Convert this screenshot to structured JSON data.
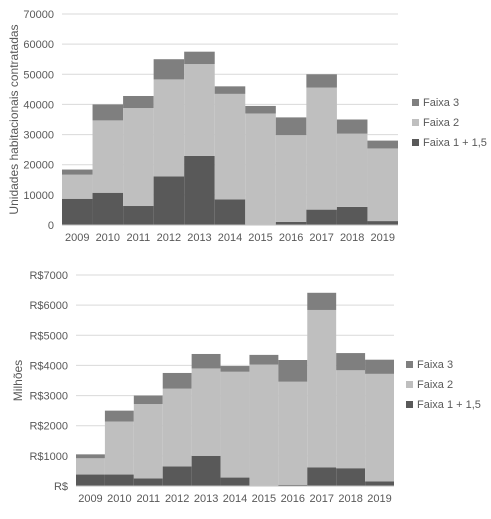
{
  "chart_data": [
    {
      "type": "bar",
      "stacked": true,
      "categories": [
        "2009",
        "2010",
        "2011",
        "2012",
        "2013",
        "2014",
        "2015",
        "2016",
        "2017",
        "2018",
        "2019"
      ],
      "series": [
        {
          "name": "Faixa 1 + 1,5",
          "color": "#595959",
          "values": [
            8700,
            10700,
            6300,
            16100,
            22900,
            8500,
            200,
            1000,
            5100,
            6000,
            1300
          ]
        },
        {
          "name": "Faixa 2",
          "color": "#bfbfbf",
          "values": [
            8000,
            24000,
            32500,
            32200,
            30500,
            35000,
            36800,
            28800,
            40500,
            24300,
            24100
          ]
        },
        {
          "name": "Faixa 3",
          "color": "#7f7f7f",
          "values": [
            1700,
            5300,
            4000,
            6700,
            4100,
            2500,
            2500,
            5900,
            4400,
            4700,
            2600
          ]
        }
      ],
      "ylabel": "Unidades habitacionais contratadas",
      "yticks": [
        "0",
        "10000",
        "20000",
        "30000",
        "40000",
        "50000",
        "60000",
        "70000"
      ],
      "ylim": [
        0,
        70000
      ],
      "grid": true,
      "legend_position": "right"
    },
    {
      "type": "bar",
      "stacked": true,
      "categories": [
        "2009",
        "2010",
        "2011",
        "2012",
        "2013",
        "2014",
        "2015",
        "2016",
        "2017",
        "2018",
        "2019"
      ],
      "series": [
        {
          "name": "Faixa 1 + 1,5",
          "color": "#595959",
          "values": [
            380,
            380,
            250,
            650,
            1000,
            280,
            20,
            40,
            620,
            590,
            150
          ]
        },
        {
          "name": "Faixa 2",
          "color": "#bfbfbf",
          "values": [
            540,
            1760,
            2470,
            2580,
            2900,
            3510,
            4010,
            3420,
            5220,
            3250,
            3570
          ]
        },
        {
          "name": "Faixa 3",
          "color": "#7f7f7f",
          "values": [
            130,
            360,
            280,
            520,
            480,
            190,
            320,
            720,
            570,
            570,
            470
          ]
        }
      ],
      "ylabel": "Milhões",
      "yticks": [
        "R$",
        "R$1000",
        "R$2000",
        "R$3000",
        "R$4000",
        "R$5000",
        "R$6000",
        "R$7000"
      ],
      "ylim": [
        0,
        7000
      ],
      "grid": true,
      "legend_position": "right"
    }
  ]
}
